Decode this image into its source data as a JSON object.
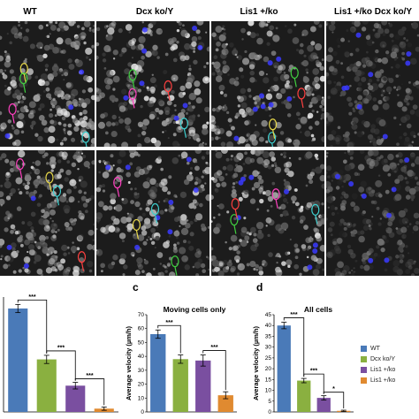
{
  "columns": [
    "WT",
    "Dcx ko/Y",
    "Lis1 +/ko",
    "Lis1 +/ko Dcx ko/Y"
  ],
  "panel_letters": [
    "c",
    "d"
  ],
  "legend": {
    "entries": [
      "WT",
      "Dcx ko/Y",
      "Lis1 +/ko",
      "Lis1 +/ko"
    ],
    "colors": [
      "#4a7ab8",
      "#8ab040",
      "#7a4fa0",
      "#e08a30"
    ]
  },
  "chart_data": [
    {
      "type": "bar",
      "title": "",
      "categories": [
        "WT",
        "Dcx ko/Y",
        "Lis1 +/ko",
        "Lis1 +/ko"
      ],
      "values": [
        63,
        32,
        16,
        2
      ],
      "errors": [
        2.5,
        2.5,
        2,
        1
      ],
      "ylim": [
        0,
        70
      ],
      "yticks": [],
      "ylabel": "",
      "significance": [
        "***",
        "***",
        "***"
      ]
    },
    {
      "type": "bar",
      "title": "Moving cells only",
      "categories": [
        "WT",
        "Dcx ko/Y",
        "Lis1 +/ko",
        "Lis1 +/ko"
      ],
      "values": [
        56,
        38,
        37,
        12
      ],
      "errors": [
        3,
        3,
        4,
        2.5
      ],
      "ylim": [
        0,
        70
      ],
      "yticks": [
        "0",
        "10",
        "20",
        "30",
        "40",
        "50",
        "60",
        "70"
      ],
      "ylabel": "Average velocity (µm/h)",
      "significance": [
        "***",
        "***"
      ]
    },
    {
      "type": "bar",
      "title": "All cells",
      "categories": [
        "WT",
        "Dcx ko/Y",
        "Lis1 +/ko",
        "Lis1 +/ko"
      ],
      "values": [
        40,
        14.5,
        6.5,
        0.5
      ],
      "errors": [
        1.5,
        1,
        1,
        0.3
      ],
      "ylim": [
        0,
        45
      ],
      "yticks": [
        "0",
        "5",
        "10",
        "15",
        "20",
        "25",
        "30",
        "35",
        "40",
        "45"
      ],
      "ylabel": "Average velocity (µm/h)",
      "significance": [
        "***",
        "***",
        "*"
      ]
    }
  ]
}
